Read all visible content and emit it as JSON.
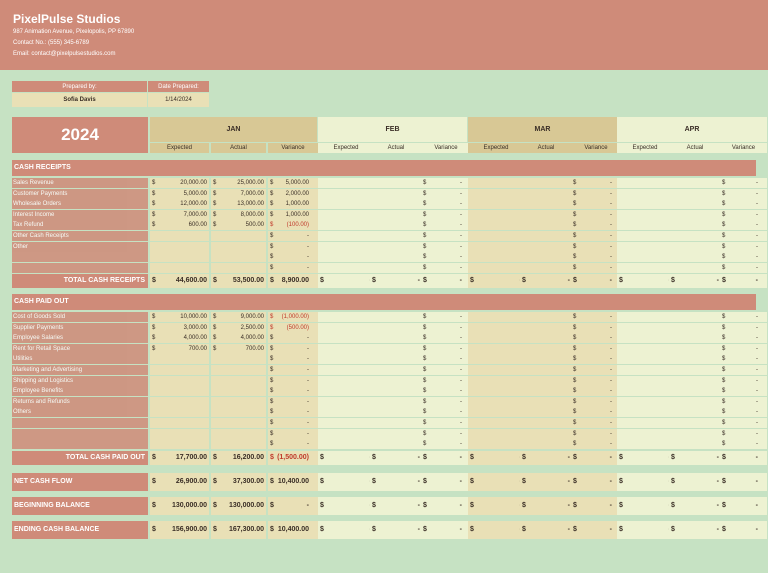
{
  "company": {
    "name": "PixelPulse Studios",
    "address": "987 Animation Avenue, Pixelopolis, PP 67890",
    "contact": "Contact No.: (555) 345-6789",
    "email": "Email: contact@pixelpulsestudios.com"
  },
  "prepared": {
    "by_label": "Prepared by:",
    "by_value": "Sofia Davis",
    "date_label": "Date Prepared:",
    "date_value": "1/14/2024"
  },
  "year": "2024",
  "months": [
    "JAN",
    "FEB",
    "MAR",
    "APR"
  ],
  "column_labels": [
    "Expected",
    "Actual",
    "Variance"
  ],
  "currency": "$",
  "dash": "-",
  "colors": {
    "header_bg": "#cf8b79",
    "page_bg": "#c6e2c3",
    "jan_cell": "#e9e0b6",
    "jan_header": "#d8c895",
    "other_cell": "#edf2d2"
  },
  "receipts": {
    "title": "CASH RECEIPTS",
    "rows": [
      {
        "label": "Sales Revenue",
        "expected": "20,000.00",
        "actual": "25,000.00",
        "variance": "5,000.00",
        "neg": false
      },
      {
        "label": "Customer Payments",
        "expected": "5,000.00",
        "actual": "7,000.00",
        "variance": "2,000.00",
        "neg": false
      },
      {
        "label": "Wholesale Orders",
        "expected": "12,000.00",
        "actual": "13,000.00",
        "variance": "1,000.00",
        "neg": false
      },
      {
        "label": "Interest Income",
        "expected": "7,000.00",
        "actual": "8,000.00",
        "variance": "1,000.00",
        "neg": false
      },
      {
        "label": "Tax Refund",
        "expected": "600.00",
        "actual": "500.00",
        "variance": "(100.00)",
        "neg": true
      },
      {
        "label": "Other Cash Receipts",
        "expected": "",
        "actual": "",
        "variance": "-",
        "neg": false
      },
      {
        "label": "Other",
        "expected": "",
        "actual": "",
        "variance": "-",
        "neg": false
      },
      {
        "label": "",
        "expected": "",
        "actual": "",
        "variance": "-",
        "neg": false
      },
      {
        "label": "",
        "expected": "",
        "actual": "",
        "variance": "-",
        "neg": false
      }
    ],
    "total_label": "TOTAL CASH RECEIPTS",
    "total": {
      "expected": "44,600.00",
      "actual": "53,500.00",
      "variance": "8,900.00",
      "neg": false
    }
  },
  "paid": {
    "title": "CASH PAID OUT",
    "rows": [
      {
        "label": "Cost of Goods Sold",
        "expected": "10,000.00",
        "actual": "9,000.00",
        "variance": "(1,000.00)",
        "neg": true
      },
      {
        "label": "Supplier Payments",
        "expected": "3,000.00",
        "actual": "2,500.00",
        "variance": "(500.00)",
        "neg": true
      },
      {
        "label": "Employee Salaries",
        "expected": "4,000.00",
        "actual": "4,000.00",
        "variance": "-",
        "neg": false
      },
      {
        "label": "Rent for Retail Space",
        "expected": "700.00",
        "actual": "700.00",
        "variance": "-",
        "neg": false
      },
      {
        "label": "Utilities",
        "expected": "",
        "actual": "",
        "variance": "-",
        "neg": false
      },
      {
        "label": "Marketing and Advertising",
        "expected": "",
        "actual": "",
        "variance": "-",
        "neg": false
      },
      {
        "label": "Shipping and Logistics",
        "expected": "",
        "actual": "",
        "variance": "-",
        "neg": false
      },
      {
        "label": "Employee Benefits",
        "expected": "",
        "actual": "",
        "variance": "-",
        "neg": false
      },
      {
        "label": "Returns and Refunds",
        "expected": "",
        "actual": "",
        "variance": "-",
        "neg": false
      },
      {
        "label": "Others",
        "expected": "",
        "actual": "",
        "variance": "-",
        "neg": false
      },
      {
        "label": "",
        "expected": "",
        "actual": "",
        "variance": "-",
        "neg": false
      },
      {
        "label": "",
        "expected": "",
        "actual": "",
        "variance": "-",
        "neg": false
      },
      {
        "label": "",
        "expected": "",
        "actual": "",
        "variance": "-",
        "neg": false
      }
    ],
    "total_label": "TOTAL CASH PAID OUT",
    "total": {
      "expected": "17,700.00",
      "actual": "16,200.00",
      "variance": "(1,500.00)",
      "neg": true
    }
  },
  "summary": [
    {
      "label": "NET CASH FLOW",
      "expected": "26,900.00",
      "actual": "37,300.00",
      "variance": "10,400.00"
    },
    {
      "label": "BEGINNING BALANCE",
      "expected": "130,000.00",
      "actual": "130,000.00",
      "variance": "-"
    },
    {
      "label": "ENDING CASH BALANCE",
      "expected": "156,900.00",
      "actual": "167,300.00",
      "variance": "10,400.00"
    }
  ]
}
